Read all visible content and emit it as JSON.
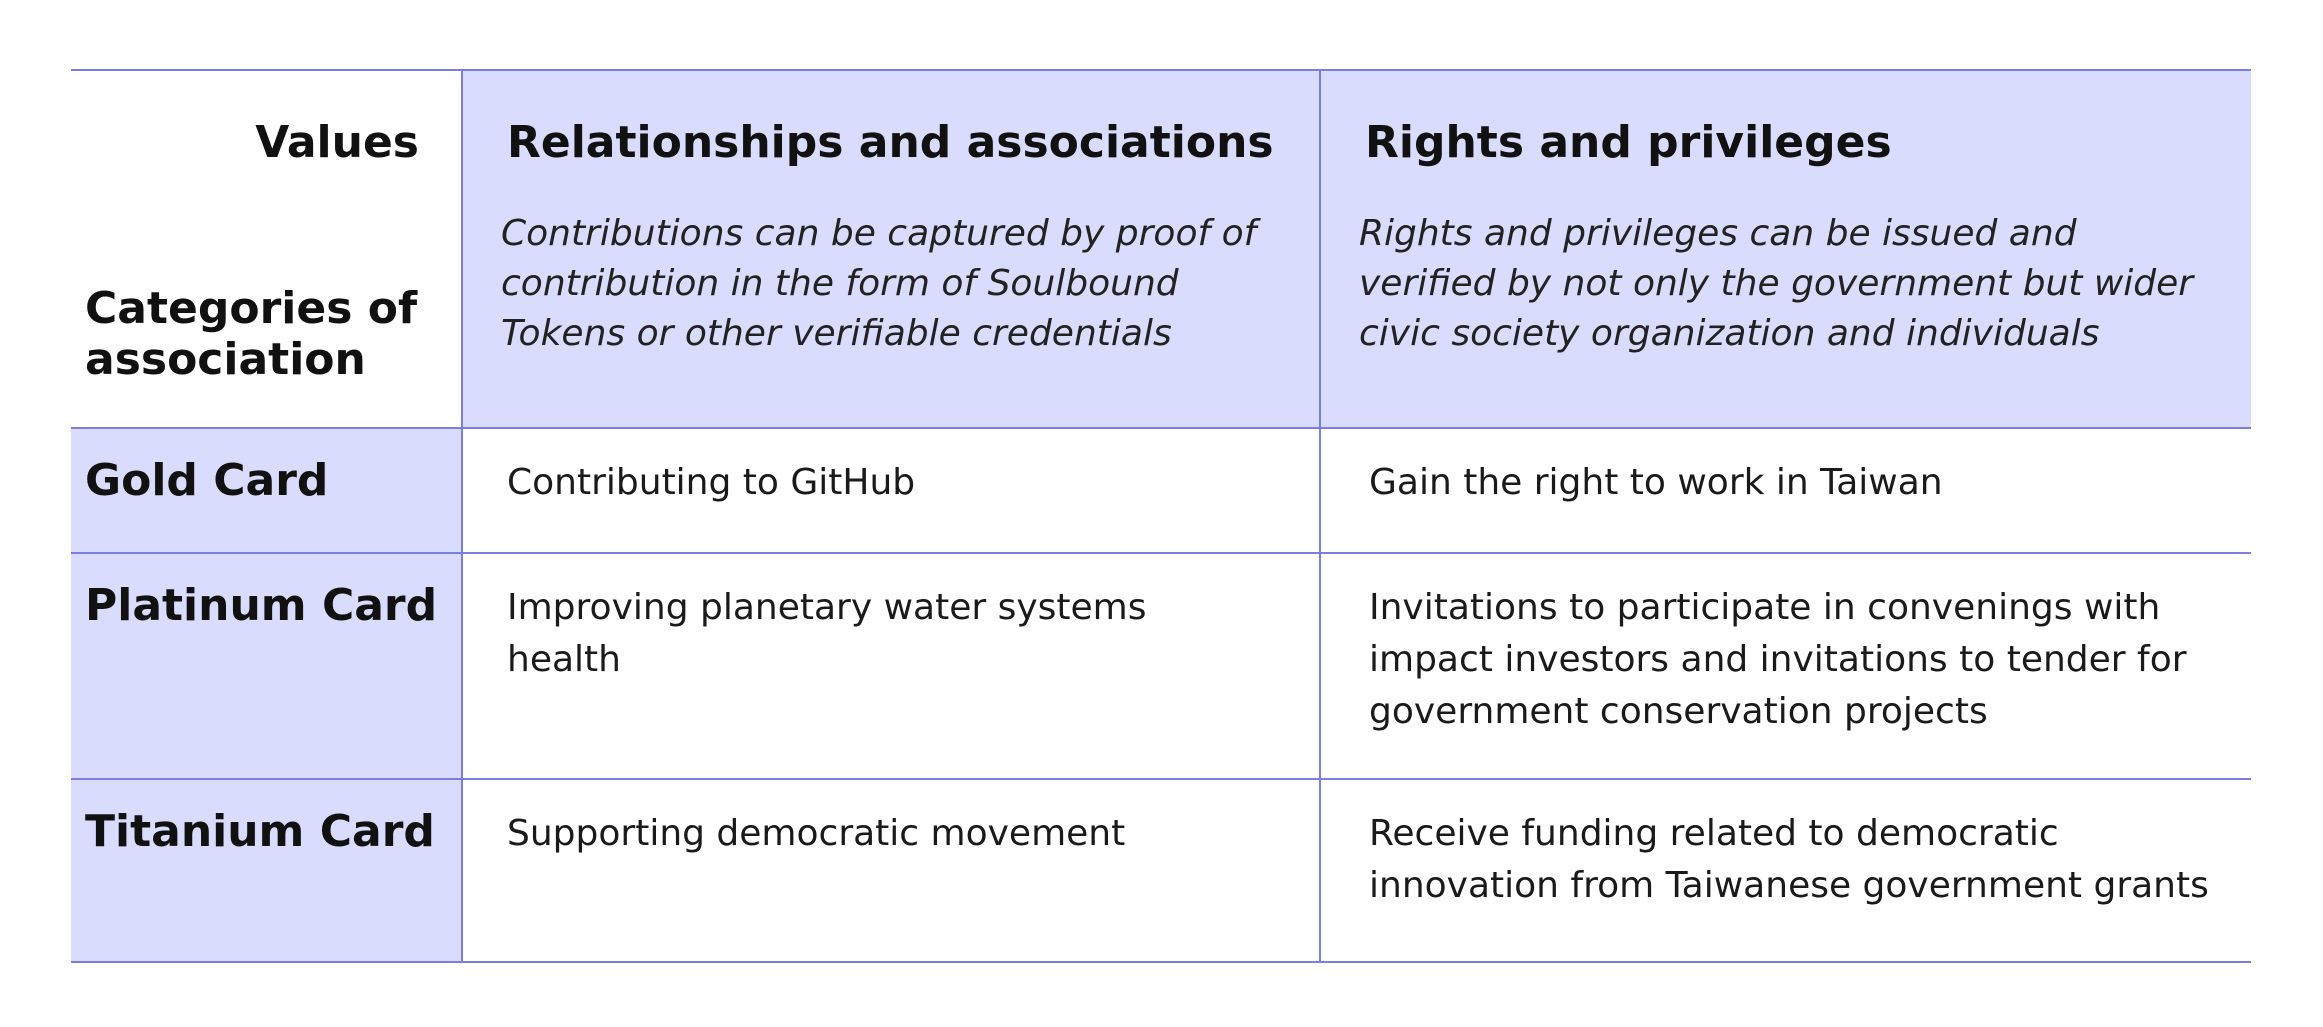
{
  "header": {
    "values_label": "Values",
    "categories_label": "Categories of association",
    "columns": [
      {
        "title": "Relationships and associations",
        "description": "Contributions can be captured by proof of contribution in the form of Soulbound Tokens or other verifiable credentials"
      },
      {
        "title": "Rights and privileges",
        "description": "Rights and privileges can be issued and verified by not only the government but wider civic society organization and individuals"
      }
    ]
  },
  "rows": [
    {
      "label": "Gold Card",
      "relationships": "Contributing to GitHub",
      "rights": "Gain the right to work in Taiwan"
    },
    {
      "label": "Platinum Card",
      "relationships": "Improving planetary water systems health",
      "rights": "Invitations to participate in convenings with impact investors and invitations to tender for government conservation projects"
    },
    {
      "label": "Titanium Card",
      "relationships": "Supporting democratic movement",
      "rights": "Receive funding related to democratic innovation from Taiwanese government grants"
    }
  ],
  "colors": {
    "tint": "#d9dcfc",
    "border": "#7b7ee0"
  }
}
